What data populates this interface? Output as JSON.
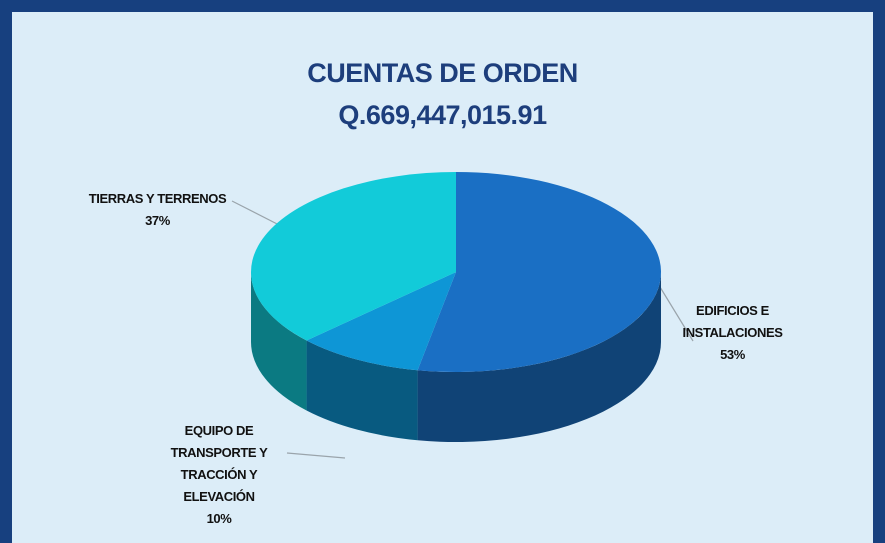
{
  "chart_data": {
    "type": "pie",
    "title": "CUENTAS DE ORDEN",
    "subtitle": "Q.669,447,015.91",
    "categories": [
      "EDIFICIOS E INSTALACIONES",
      "EQUIPO DE TRANSPORTE Y TRACCIÓN Y ELEVACIÓN",
      "TIERRAS Y TERRENOS"
    ],
    "values": [
      53,
      10,
      37
    ],
    "value_labels": [
      "53%",
      "10%",
      "37%"
    ],
    "colors": [
      "#1a6fc4",
      "#0e96d6",
      "#12cbd9"
    ]
  }
}
